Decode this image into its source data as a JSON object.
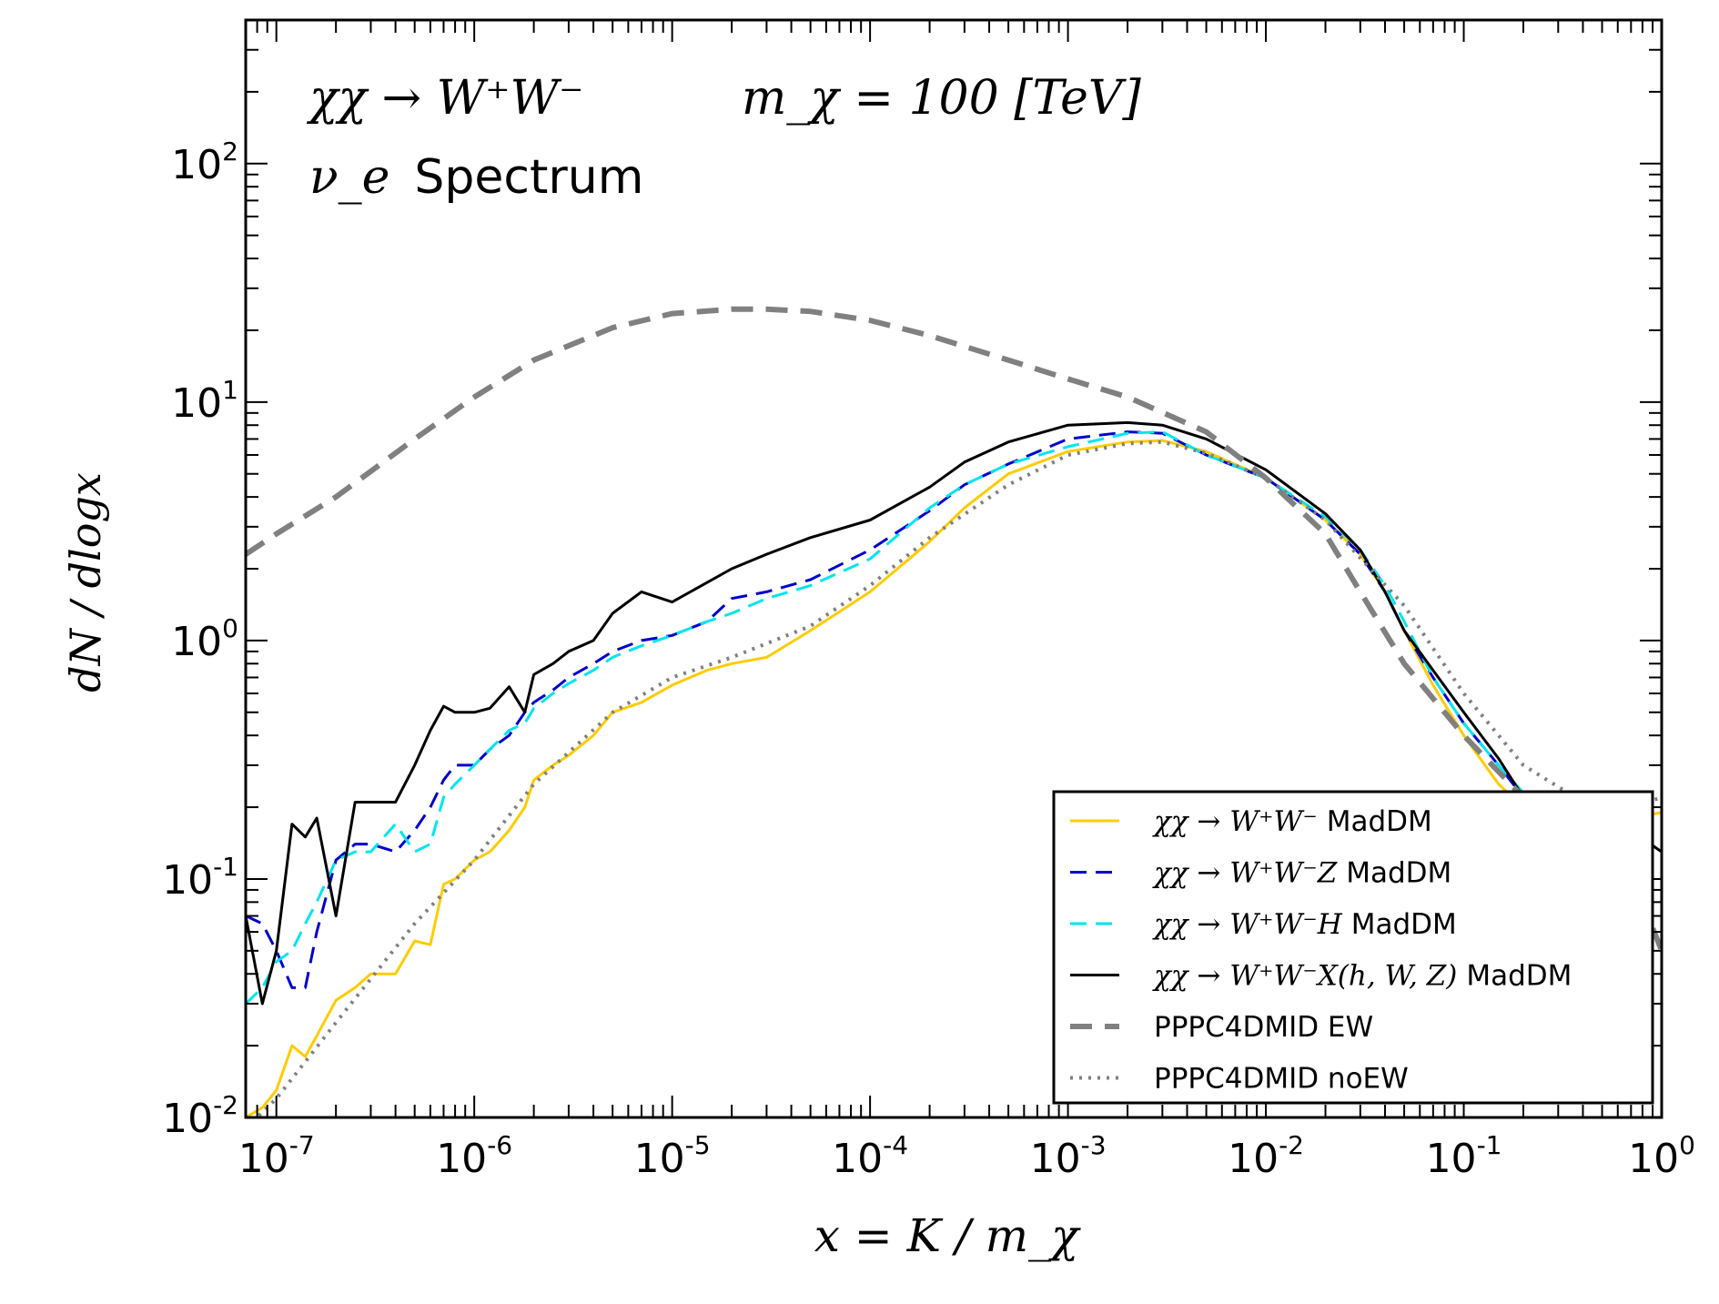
{
  "chart_data": {
    "type": "line",
    "title": {
      "process": "χχ → W⁺W⁻",
      "mass": "m_χ = 100 [TeV]",
      "particle": "ν_e",
      "spectrum_word": "Spectrum"
    },
    "xlabel": "x = K / m_χ",
    "ylabel": "dN / dlogx",
    "x_scale": "log",
    "y_scale": "log",
    "xlim": [
      7e-08,
      1.0
    ],
    "ylim": [
      0.01,
      400
    ],
    "x_ticks": [
      {
        "base": "10",
        "exp": "-7",
        "value": 1e-07
      },
      {
        "base": "10",
        "exp": "-6",
        "value": 1e-06
      },
      {
        "base": "10",
        "exp": "-5",
        "value": 1e-05
      },
      {
        "base": "10",
        "exp": "-4",
        "value": 0.0001
      },
      {
        "base": "10",
        "exp": "-3",
        "value": 0.001
      },
      {
        "base": "10",
        "exp": "-2",
        "value": 0.01
      },
      {
        "base": "10",
        "exp": "-1",
        "value": 0.1
      },
      {
        "base": "10",
        "exp": "0",
        "value": 1.0
      }
    ],
    "y_ticks": [
      {
        "base": "10",
        "exp": "-2",
        "value": 0.01
      },
      {
        "base": "10",
        "exp": "-1",
        "value": 0.1
      },
      {
        "base": "10",
        "exp": "0",
        "value": 1.0
      },
      {
        "base": "10",
        "exp": "1",
        "value": 10.0
      },
      {
        "base": "10",
        "exp": "2",
        "value": 100.0
      }
    ],
    "grid": false,
    "legend_position": "lower-right",
    "legend": [
      {
        "math": "χχ → W⁺W⁻",
        "tag": "MadDM"
      },
      {
        "math": "χχ → W⁺W⁻Z",
        "tag": "MadDM"
      },
      {
        "math": "χχ → W⁺W⁻H",
        "tag": "MadDM"
      },
      {
        "math": "χχ → W⁺W⁻X(h, W, Z)",
        "tag": "MadDM"
      },
      {
        "math": "",
        "tag": "PPPC4DMID EW"
      },
      {
        "math": "",
        "tag": "PPPC4DMID noEW"
      }
    ],
    "series": [
      {
        "name": "χχ → W⁺W⁻ MadDM",
        "color": "#ffcc00",
        "style": "solid",
        "x": [
          7e-08,
          8.5e-08,
          1e-07,
          1.2e-07,
          1.4e-07,
          1.6e-07,
          2e-07,
          2.5e-07,
          3e-07,
          4e-07,
          5e-07,
          6e-07,
          7e-07,
          8e-07,
          1e-06,
          1.2e-06,
          1.5e-06,
          1.8e-06,
          2e-06,
          2.5e-06,
          3e-06,
          4e-06,
          5e-06,
          7e-06,
          1e-05,
          1.5e-05,
          2e-05,
          3e-05,
          5e-05,
          0.0001,
          0.0002,
          0.0003,
          0.0005,
          0.001,
          0.002,
          0.003,
          0.005,
          0.01,
          0.02,
          0.03,
          0.04,
          0.05,
          0.07,
          0.1,
          0.15,
          0.2,
          0.3,
          0.5,
          0.7,
          1.0
        ],
        "y": [
          0.01,
          0.011,
          0.013,
          0.02,
          0.018,
          0.022,
          0.031,
          0.035,
          0.04,
          0.04,
          0.055,
          0.053,
          0.095,
          0.1,
          0.12,
          0.13,
          0.16,
          0.2,
          0.26,
          0.3,
          0.33,
          0.4,
          0.5,
          0.55,
          0.65,
          0.75,
          0.8,
          0.85,
          1.1,
          1.6,
          2.6,
          3.6,
          5.0,
          6.2,
          6.8,
          6.9,
          6.2,
          4.8,
          3.2,
          2.3,
          1.6,
          1.1,
          0.65,
          0.4,
          0.25,
          0.2,
          0.19,
          0.18,
          0.18,
          0.19
        ]
      },
      {
        "name": "χχ → W⁺W⁻Z MadDM",
        "color": "#0000cc",
        "style": "dashed",
        "x": [
          7e-08,
          8.5e-08,
          1e-07,
          1.2e-07,
          1.4e-07,
          1.6e-07,
          2e-07,
          2.5e-07,
          3e-07,
          4e-07,
          5e-07,
          6e-07,
          7e-07,
          8e-07,
          1e-06,
          1.2e-06,
          1.5e-06,
          1.8e-06,
          2e-06,
          2.5e-06,
          3e-06,
          4e-06,
          5e-06,
          7e-06,
          1e-05,
          1.5e-05,
          2e-05,
          3e-05,
          5e-05,
          0.0001,
          0.0002,
          0.0003,
          0.0005,
          0.001,
          0.002,
          0.003,
          0.005,
          0.01,
          0.02,
          0.03,
          0.04,
          0.05,
          0.07,
          0.1,
          0.15,
          0.2,
          0.3
        ],
        "y": [
          0.07,
          0.065,
          0.05,
          0.035,
          0.035,
          0.06,
          0.12,
          0.14,
          0.14,
          0.13,
          0.16,
          0.2,
          0.26,
          0.3,
          0.3,
          0.35,
          0.4,
          0.5,
          0.55,
          0.62,
          0.7,
          0.8,
          0.9,
          1.0,
          1.05,
          1.2,
          1.5,
          1.6,
          1.8,
          2.4,
          3.5,
          4.5,
          5.5,
          7.0,
          7.5,
          7.4,
          6.0,
          4.8,
          3.2,
          2.3,
          1.6,
          1.1,
          0.7,
          0.45,
          0.3,
          0.22,
          0.19
        ]
      },
      {
        "name": "χχ → W⁺W⁻H MadDM",
        "color": "#00e5ee",
        "style": "dashed",
        "x": [
          7e-08,
          8.5e-08,
          1e-07,
          1.2e-07,
          1.4e-07,
          1.6e-07,
          2e-07,
          2.5e-07,
          3e-07,
          4e-07,
          5e-07,
          6e-07,
          7e-07,
          8e-07,
          1e-06,
          1.2e-06,
          1.5e-06,
          1.8e-06,
          2e-06,
          2.5e-06,
          3e-06,
          4e-06,
          5e-06,
          7e-06,
          1e-05,
          1.5e-05,
          2e-05,
          3e-05,
          5e-05,
          0.0001,
          0.0002,
          0.0003,
          0.0005,
          0.001,
          0.002,
          0.003,
          0.005,
          0.01,
          0.02,
          0.03,
          0.04,
          0.05,
          0.07,
          0.1,
          0.15,
          0.2,
          0.3
        ],
        "y": [
          0.03,
          0.035,
          0.045,
          0.05,
          0.065,
          0.08,
          0.12,
          0.13,
          0.13,
          0.17,
          0.13,
          0.14,
          0.22,
          0.25,
          0.3,
          0.35,
          0.42,
          0.45,
          0.52,
          0.6,
          0.66,
          0.75,
          0.85,
          0.95,
          1.05,
          1.2,
          1.3,
          1.5,
          1.7,
          2.2,
          3.6,
          4.5,
          5.5,
          6.5,
          7.4,
          7.5,
          6.0,
          4.8,
          3.3,
          2.4,
          1.7,
          1.2,
          0.7,
          0.45,
          0.3,
          0.23,
          0.2
        ]
      },
      {
        "name": "χχ → W⁺W⁻X(h, W, Z) MadDM",
        "color": "#000000",
        "style": "solid",
        "x": [
          7e-08,
          8.5e-08,
          1e-07,
          1.2e-07,
          1.4e-07,
          1.6e-07,
          2e-07,
          2.5e-07,
          3e-07,
          4e-07,
          5e-07,
          6e-07,
          7e-07,
          8e-07,
          1e-06,
          1.2e-06,
          1.5e-06,
          1.8e-06,
          2e-06,
          2.5e-06,
          3e-06,
          4e-06,
          5e-06,
          7e-06,
          1e-05,
          1.5e-05,
          2e-05,
          3e-05,
          5e-05,
          0.0001,
          0.0002,
          0.0003,
          0.0005,
          0.001,
          0.002,
          0.003,
          0.005,
          0.01,
          0.02,
          0.03,
          0.04,
          0.05,
          0.07,
          0.1,
          0.15,
          0.2,
          0.3,
          0.5,
          0.7,
          1.0
        ],
        "y": [
          0.07,
          0.03,
          0.05,
          0.17,
          0.15,
          0.18,
          0.07,
          0.21,
          0.21,
          0.21,
          0.3,
          0.42,
          0.53,
          0.5,
          0.5,
          0.52,
          0.64,
          0.5,
          0.72,
          0.8,
          0.9,
          1.0,
          1.3,
          1.6,
          1.45,
          1.75,
          2.0,
          2.3,
          2.7,
          3.2,
          4.4,
          5.6,
          6.8,
          8.0,
          8.2,
          8.0,
          7.0,
          5.2,
          3.4,
          2.4,
          1.6,
          1.1,
          0.75,
          0.5,
          0.32,
          0.22,
          0.2,
          0.18,
          0.16,
          0.13
        ]
      },
      {
        "name": "PPPC4DMID EW",
        "color": "#808080",
        "style": "dashed-thick",
        "x": [
          7e-08,
          1e-07,
          2e-07,
          5e-07,
          1e-06,
          2e-06,
          5e-06,
          1e-05,
          2e-05,
          3e-05,
          5e-05,
          0.0001,
          0.0002,
          0.0005,
          0.001,
          0.002,
          0.005,
          0.01,
          0.02,
          0.03,
          0.05,
          0.1,
          0.2,
          0.4,
          0.6,
          0.8,
          1.0
        ],
        "y": [
          2.3,
          2.8,
          4.0,
          7.0,
          10.5,
          15.0,
          20.5,
          23.5,
          24.5,
          24.5,
          24.0,
          22.0,
          19.0,
          15.0,
          12.5,
          10.5,
          7.5,
          4.8,
          2.8,
          1.6,
          0.8,
          0.4,
          0.22,
          0.16,
          0.13,
          0.08,
          0.05
        ]
      },
      {
        "name": "PPPC4DMID noEW",
        "color": "#808080",
        "style": "dotted",
        "x": [
          7e-08,
          1e-07,
          2e-07,
          5e-07,
          1e-06,
          2e-06,
          5e-06,
          1e-05,
          2e-05,
          5e-05,
          0.0001,
          0.0002,
          0.0005,
          0.001,
          0.002,
          0.003,
          0.005,
          0.01,
          0.02,
          0.05,
          0.1,
          0.2,
          0.4,
          0.7,
          1.0
        ],
        "y": [
          0.009,
          0.012,
          0.025,
          0.065,
          0.12,
          0.25,
          0.5,
          0.7,
          0.85,
          1.15,
          1.7,
          2.7,
          4.5,
          6.0,
          6.7,
          6.8,
          6.1,
          4.8,
          3.2,
          1.4,
          0.6,
          0.3,
          0.21,
          0.2,
          0.22
        ]
      }
    ]
  }
}
